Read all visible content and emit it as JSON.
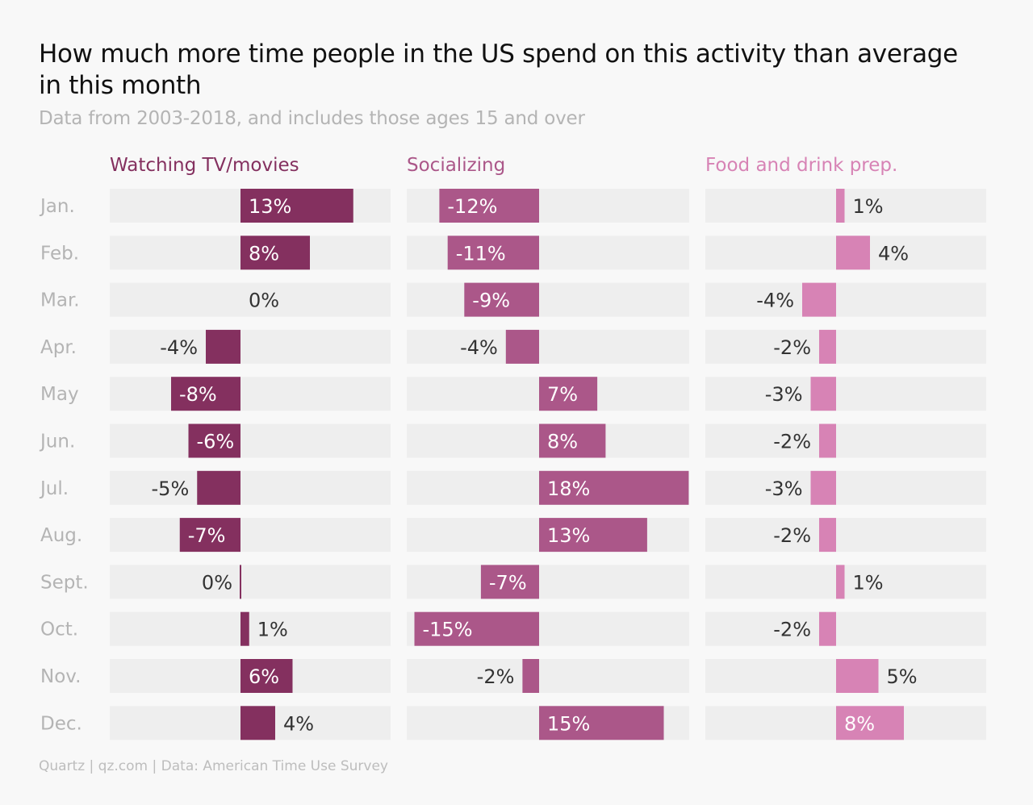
{
  "title": "How much more time people in the US spend on this activity than average in this month",
  "subtitle": "Data from 2003-2018, and includes those ages 15 and over",
  "source": "Quartz | qz.com | Data: American Time Use Survey",
  "chart_data": {
    "type": "bar",
    "orientation": "horizontal",
    "categories": [
      "Jan.",
      "Feb.",
      "Mar.",
      "Apr.",
      "May",
      "Jun.",
      "Jul.",
      "Aug.",
      "Sept.",
      "Oct.",
      "Nov.",
      "Dec."
    ],
    "series": [
      {
        "name": "Watching TV/movies",
        "color": "#84305f",
        "values": [
          13,
          8,
          0,
          -4,
          -8,
          -6,
          -5,
          -7,
          0,
          1,
          6,
          4
        ],
        "labels": [
          "13%",
          "8%",
          "0%",
          "-4%",
          "-8%",
          "-6%",
          "-5%",
          "-7%",
          "0%",
          "1%",
          "6%",
          "4%"
        ]
      },
      {
        "name": "Socializing",
        "color": "#ab5789",
        "values": [
          -12,
          -11,
          -9,
          -4,
          7,
          8,
          18,
          13,
          -7,
          -15,
          -2,
          15
        ],
        "labels": [
          "-12%",
          "-11%",
          "-9%",
          "-4%",
          "7%",
          "8%",
          "18%",
          "13%",
          "-7%",
          "-15%",
          "-2%",
          "15%"
        ]
      },
      {
        "name": "Food and drink prep.",
        "color": "#d783b5",
        "values": [
          1,
          4,
          -4,
          -2,
          -3,
          -2,
          -3,
          -2,
          1,
          -2,
          5,
          8
        ],
        "labels": [
          "1%",
          "4%",
          "-4%",
          "-2%",
          "-3%",
          "-2%",
          "-3%",
          "-2%",
          "1%",
          "-2%",
          "5%",
          "8%"
        ]
      }
    ],
    "track_color": "#eeeeee"
  }
}
